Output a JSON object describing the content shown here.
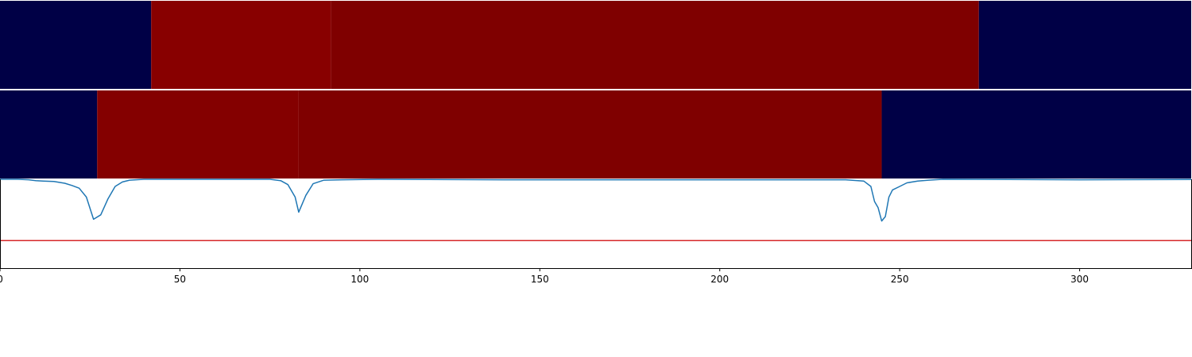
{
  "chart_data": [
    {
      "type": "heatmap",
      "xlim": [
        0,
        331
      ],
      "segments": [
        {
          "start": 0,
          "end": 42,
          "color": "#000046"
        },
        {
          "start": 42,
          "end": 92,
          "color": "#880000"
        },
        {
          "start": 92,
          "end": 272,
          "color": "#7f0000"
        },
        {
          "start": 272,
          "end": 331,
          "color": "#000046"
        }
      ]
    },
    {
      "type": "heatmap",
      "xlim": [
        0,
        331
      ],
      "segments": [
        {
          "start": 0,
          "end": 27,
          "color": "#000046"
        },
        {
          "start": 27,
          "end": 83,
          "color": "#840000"
        },
        {
          "start": 83,
          "end": 245,
          "color": "#7f0000"
        },
        {
          "start": 245,
          "end": 331,
          "color": "#000046"
        }
      ]
    },
    {
      "type": "line",
      "xlim": [
        0,
        331
      ],
      "ylim": [
        0,
        1
      ],
      "xticks": [
        0,
        50,
        100,
        150,
        200,
        250,
        300
      ],
      "tick_labels": [
        "0",
        "50",
        "100",
        "150",
        "200",
        "250",
        "300"
      ],
      "threshold": {
        "y": 0.31,
        "color": "#d62728"
      },
      "series": [
        {
          "color": "#1f77b4",
          "x": [
            0,
            5,
            8,
            10,
            12,
            15,
            18,
            20,
            22,
            24,
            26,
            28,
            30,
            32,
            34,
            36,
            40,
            75,
            78,
            80,
            82,
            83,
            85,
            87,
            90,
            95,
            105,
            140,
            160,
            235,
            240,
            242,
            243,
            244,
            245,
            246,
            247,
            248,
            250,
            252,
            255,
            258,
            262,
            300,
            331
          ],
          "y": [
            1.0,
            1.0,
            0.995,
            0.985,
            0.98,
            0.975,
            0.955,
            0.93,
            0.9,
            0.8,
            0.55,
            0.6,
            0.78,
            0.92,
            0.97,
            0.99,
            1.0,
            1.0,
            0.985,
            0.94,
            0.8,
            0.63,
            0.82,
            0.95,
            0.99,
            0.995,
            1.0,
            0.995,
            0.995,
            0.995,
            0.98,
            0.92,
            0.75,
            0.68,
            0.53,
            0.58,
            0.8,
            0.88,
            0.92,
            0.96,
            0.98,
            0.99,
            1.0,
            0.995,
            0.998
          ]
        }
      ]
    }
  ]
}
